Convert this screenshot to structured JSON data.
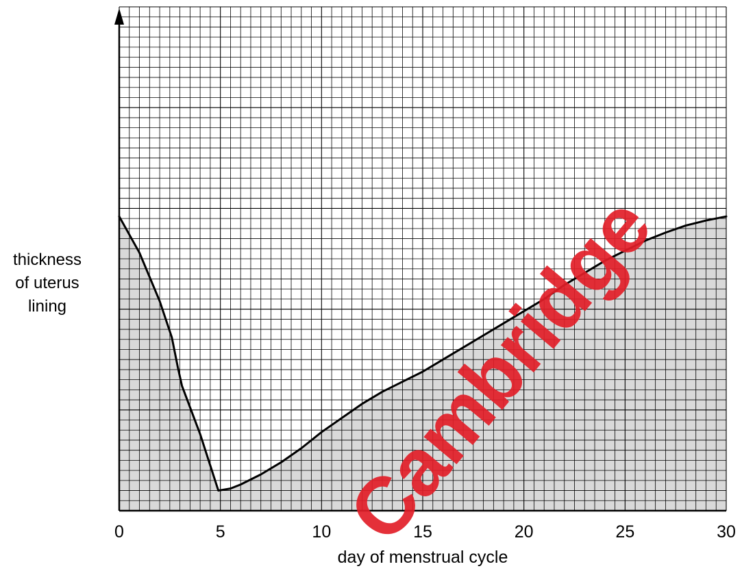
{
  "chart_data": {
    "type": "area",
    "xlabel": "day of menstrual cycle",
    "ylabel_lines": [
      "thickness",
      "of uterus",
      "lining"
    ],
    "x_ticks": [
      0,
      5,
      10,
      15,
      20,
      25,
      30
    ],
    "xlim": [
      0,
      30
    ],
    "ylim": [
      0,
      25
    ],
    "y_tick_labels": [],
    "grid": true,
    "series": [
      {
        "x": [
          0,
          1,
          2,
          2.6,
          2.9,
          3.1,
          4,
          4.9,
          5.5,
          6,
          7,
          8,
          9,
          10,
          11,
          12,
          13,
          14,
          15,
          16,
          17,
          18,
          19,
          20,
          21,
          22,
          23,
          24,
          25,
          26,
          27,
          28,
          29,
          30
        ],
        "y": [
          14.6,
          12.8,
          10.4,
          8.6,
          7.1,
          6.2,
          3.8,
          1.0,
          1.1,
          1.3,
          1.8,
          2.4,
          3.1,
          3.9,
          4.6,
          5.3,
          5.9,
          6.4,
          6.9,
          7.5,
          8.1,
          8.7,
          9.3,
          9.9,
          10.5,
          11.2,
          11.8,
          12.4,
          12.9,
          13.4,
          13.8,
          14.15,
          14.4,
          14.6
        ],
        "fill": "#d9d9d9"
      }
    ],
    "watermark": "Cambridge",
    "colors": {
      "line": "#000000",
      "fill": "#d9d9d9",
      "grid": "#000000",
      "watermark": "#e21e28"
    }
  }
}
